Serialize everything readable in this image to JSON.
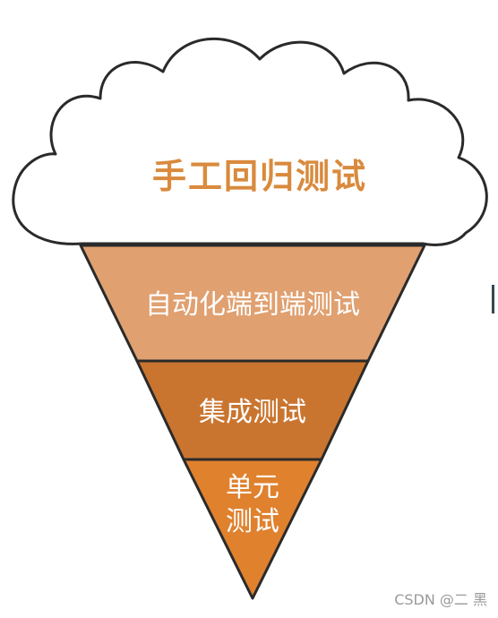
{
  "diagram": {
    "cloud_label": "手工回归测试",
    "layers": [
      {
        "label": "自动化端到端测试",
        "color": "#e0a070"
      },
      {
        "label": "集成测试",
        "color": "#c97530"
      },
      {
        "label_line1": "单元",
        "label_line2": "测试",
        "color": "#e0812e"
      }
    ],
    "title_color": "#d98a3c"
  },
  "watermark": "CSDN @二 黑"
}
